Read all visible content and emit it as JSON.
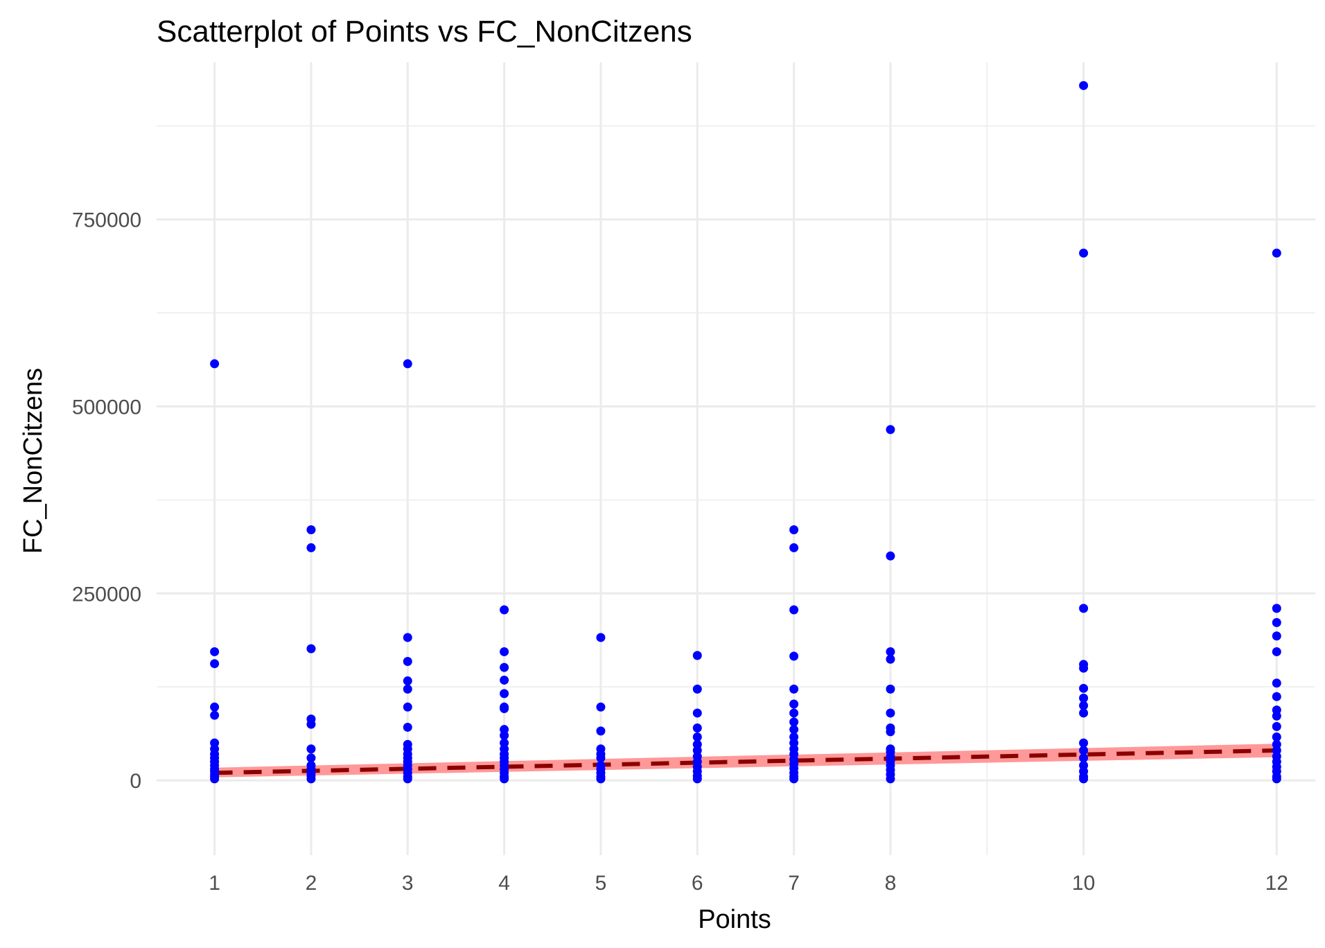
{
  "chart_data": {
    "type": "scatter",
    "title": "Scatterplot of Points vs  FC_NonCitzens",
    "xlabel": "Points",
    "ylabel": "FC_NonCitzens",
    "xlim": [
      0.4,
      12.4
    ],
    "ylim": [
      -100000,
      960000
    ],
    "x_ticks": [
      1,
      2,
      3,
      4,
      5,
      6,
      7,
      8,
      10,
      12
    ],
    "x_tick_labels": [
      "1",
      "2",
      "3",
      "4",
      "5",
      "6",
      "7",
      "8",
      "10",
      "12"
    ],
    "x_minor_gridlines": [
      9
    ],
    "y_ticks": [
      0,
      250000,
      500000,
      750000
    ],
    "y_tick_labels": [
      "0",
      "250000",
      "500000",
      "750000"
    ],
    "y_minor_gridlines": [
      125000,
      375000,
      625000,
      875000
    ],
    "grid": true,
    "legend": "none",
    "point_color": "#0000ff",
    "points": [
      {
        "x": 1,
        "ys": [
          557000,
          172000,
          156000,
          98000,
          87000,
          50000,
          42000,
          35000,
          30000,
          25000,
          20000,
          15000,
          12000,
          8000,
          5000,
          2000
        ]
      },
      {
        "x": 2,
        "ys": [
          335000,
          311000,
          176000,
          82000,
          75000,
          42000,
          30000,
          20000,
          15000,
          10000,
          6000,
          2000
        ]
      },
      {
        "x": 3,
        "ys": [
          557000,
          191000,
          159000,
          133000,
          122000,
          98000,
          71000,
          48000,
          42000,
          35000,
          30000,
          25000,
          20000,
          15000,
          10000,
          5000,
          2000
        ]
      },
      {
        "x": 4,
        "ys": [
          228000,
          172000,
          151000,
          134000,
          116000,
          98000,
          96000,
          68000,
          60000,
          50000,
          42000,
          35000,
          30000,
          25000,
          20000,
          15000,
          10000,
          5000,
          2000
        ]
      },
      {
        "x": 5,
        "ys": [
          191000,
          98000,
          66000,
          42000,
          35000,
          30000,
          20000,
          15000,
          10000,
          5000,
          2000
        ]
      },
      {
        "x": 6,
        "ys": [
          167000,
          122000,
          90000,
          70000,
          58000,
          48000,
          40000,
          32000,
          25000,
          18000,
          12000,
          6000,
          2000
        ]
      },
      {
        "x": 7,
        "ys": [
          335000,
          311000,
          228000,
          166000,
          122000,
          102000,
          90000,
          78000,
          68000,
          58000,
          50000,
          42000,
          35000,
          28000,
          22000,
          16000,
          10000,
          5000,
          2000
        ]
      },
      {
        "x": 8,
        "ys": [
          469000,
          300000,
          172000,
          162000,
          122000,
          90000,
          70000,
          65000,
          42000,
          38000,
          32000,
          26000,
          20000,
          14000,
          8000,
          2000
        ]
      },
      {
        "x": 10,
        "ys": [
          929000,
          705000,
          230000,
          155000,
          150000,
          123000,
          110000,
          100000,
          90000,
          50000,
          40000,
          30000,
          20000,
          12000,
          5000,
          2000
        ]
      },
      {
        "x": 12,
        "ys": [
          705000,
          230000,
          211000,
          193000,
          172000,
          130000,
          112000,
          94000,
          86000,
          72000,
          58000,
          48000,
          40000,
          32000,
          25000,
          18000,
          12000,
          5000,
          2000
        ]
      }
    ],
    "trend_line": {
      "style": "dashed",
      "color": "#8b0000",
      "x": [
        1,
        12
      ],
      "y": [
        10000,
        40000
      ],
      "band_color": "#ff9999",
      "band_upper": [
        17000,
        49000
      ],
      "band_lower": [
        4000,
        31000
      ]
    }
  }
}
